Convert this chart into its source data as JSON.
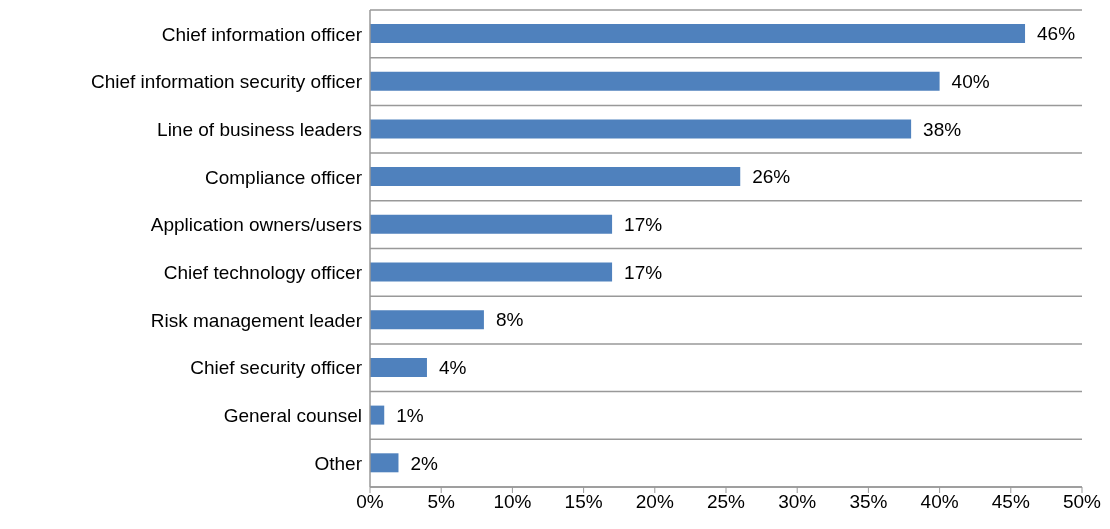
{
  "chart_data": {
    "type": "bar",
    "orientation": "horizontal",
    "categories": [
      "Chief information officer",
      "Chief information security officer",
      "Line of business leaders",
      "Compliance officer",
      "Application owners/users",
      "Chief technology officer",
      "Risk management leader",
      "Chief security officer",
      "General counsel",
      "Other"
    ],
    "values": [
      46,
      40,
      38,
      26,
      17,
      17,
      8,
      4,
      1,
      2
    ],
    "value_labels": [
      "46%",
      "40%",
      "38%",
      "26%",
      "17%",
      "17%",
      "8%",
      "4%",
      "1%",
      "2%"
    ],
    "color": "#4f81bd",
    "xlim": [
      0,
      50
    ],
    "xticks": [
      {
        "value": 0,
        "label": "0%"
      },
      {
        "value": 5,
        "label": "5%"
      },
      {
        "value": 10,
        "label": "10%"
      },
      {
        "value": 15,
        "label": "15%"
      },
      {
        "value": 20,
        "label": "20%"
      },
      {
        "value": 25,
        "label": "25%"
      },
      {
        "value": 30,
        "label": "30%"
      },
      {
        "value": 35,
        "label": "35%"
      },
      {
        "value": 40,
        "label": "40%"
      },
      {
        "value": 45,
        "label": "45%"
      },
      {
        "value": 50,
        "label": "50%"
      }
    ],
    "grid": "y"
  }
}
